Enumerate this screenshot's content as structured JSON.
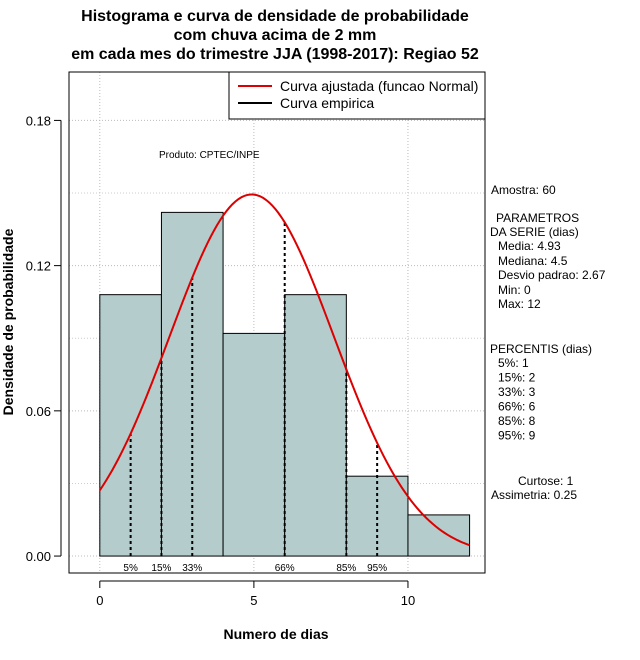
{
  "chart_data": {
    "type": "histogram",
    "title_lines": [
      "Histograma e curva de densidade de probabilidade",
      "com chuva acima de 2 mm",
      "em cada mes do trimestre JJA (1998-2017): Regiao 52"
    ],
    "xlabel": "Numero de dias",
    "ylabel": "Densidade de probabilidade",
    "xlim": [
      -1,
      12.5
    ],
    "ylim": [
      -0.007,
      0.2
    ],
    "x_ticks": [
      0,
      5,
      10
    ],
    "y_ticks": [
      0.0,
      0.06,
      0.12,
      0.18
    ],
    "y_tick_labels": [
      "0.00",
      "0.06",
      "0.12",
      "0.18"
    ],
    "grid": true,
    "bin_edges": [
      0,
      2,
      4,
      6,
      8,
      10,
      12
    ],
    "densities": [
      0.108,
      0.142,
      0.092,
      0.108,
      0.033,
      0.017
    ],
    "bar_color": "#b5cccc",
    "normal_curve": {
      "mean": 4.93,
      "sd": 2.67,
      "color": "#dd0000",
      "label": "Curva ajustada (funcao Normal)"
    },
    "empirical_curve": {
      "color": "#000000",
      "label": "Curva empirica"
    },
    "percentile_markers": [
      {
        "label": "5%",
        "x": 1
      },
      {
        "label": "15%",
        "x": 2
      },
      {
        "label": "33%",
        "x": 3
      },
      {
        "label": "66%",
        "x": 6
      },
      {
        "label": "85%",
        "x": 8
      },
      {
        "label": "95%",
        "x": 9
      }
    ],
    "credit": "Produto: CPTEC/INPE",
    "side_panel": {
      "amostra": "Amostra: 60",
      "parametros_title": "PARAMETROS",
      "parametros_subtitle": "DA SERIE (dias)",
      "media": "Media: 4.93",
      "mediana": "Mediana: 4.5",
      "desvio": "Desvio padrao: 2.67",
      "min": "Min: 0",
      "max": "Max: 12",
      "percentis_title": "PERCENTIS (dias)",
      "percentis": [
        "5%: 1",
        "15%: 2",
        "33%: 3",
        "66%: 6",
        "85%: 8",
        "95%: 9"
      ],
      "curtose": "Curtose: 1",
      "assimetria": "Assimetria: 0.25"
    }
  }
}
